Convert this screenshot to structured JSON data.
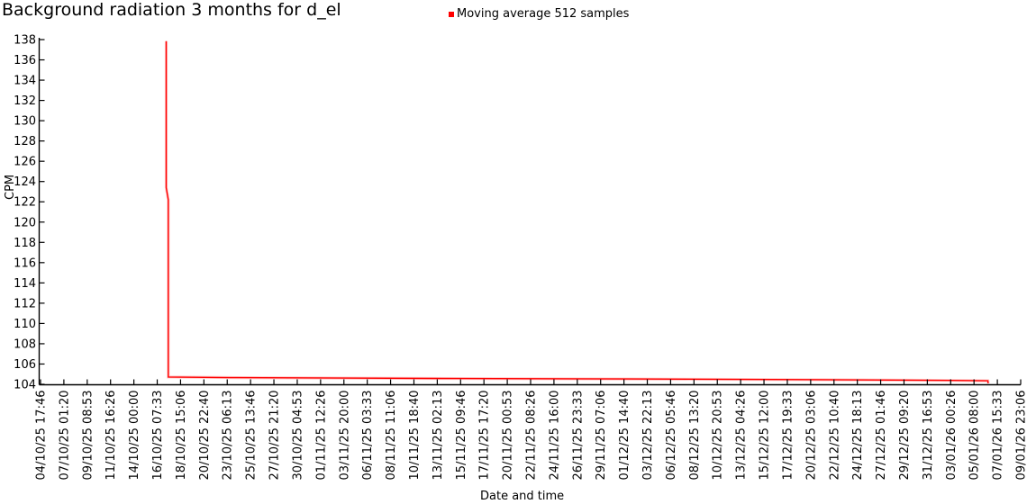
{
  "chart_data": {
    "type": "line",
    "title": "Background radiation 3 months for d_el",
    "xlabel": "Date and time",
    "ylabel": "CPM",
    "ylim": [
      104,
      138
    ],
    "y_tick_step": 2,
    "y_ticks": [
      104,
      106,
      108,
      110,
      112,
      114,
      116,
      118,
      120,
      122,
      124,
      126,
      128,
      130,
      132,
      134,
      136,
      138
    ],
    "x_tick_labels": [
      "04/10/25 17:46",
      "07/10/25 01:20",
      "09/10/25 08:53",
      "11/10/25 16:26",
      "14/10/25 00:00",
      "16/10/25 07:33",
      "18/10/25 15:06",
      "20/10/25 22:40",
      "23/10/25 06:13",
      "25/10/25 13:46",
      "27/10/25 21:20",
      "30/10/25 04:53",
      "01/11/25 12:26",
      "03/11/25 20:00",
      "06/11/25 03:33",
      "08/11/25 11:06",
      "10/11/25 18:40",
      "13/11/25 02:13",
      "15/11/25 09:46",
      "17/11/25 17:20",
      "20/11/25 00:53",
      "22/11/25 08:26",
      "24/11/25 16:00",
      "26/11/25 23:33",
      "29/11/25 07:06",
      "01/12/25 14:40",
      "03/12/25 22:13",
      "06/12/25 05:46",
      "08/12/25 13:20",
      "10/12/25 20:53",
      "13/12/25 04:26",
      "15/12/25 12:00",
      "17/12/25 19:33",
      "20/12/25 03:06",
      "22/12/25 10:40",
      "24/12/25 18:13",
      "27/12/25 01:46",
      "29/12/25 09:20",
      "31/12/25 16:53",
      "03/01/26 00:26",
      "05/01/26 08:00",
      "07/01/26 15:33",
      "09/01/26 23:06"
    ],
    "grid": false,
    "legend_position": "top-center",
    "axis_color": "#000000",
    "series": [
      {
        "name": "Moving average 512 samples",
        "color": "#ff0000",
        "halo_color": "#ff9c9c",
        "points_x_frac_cpm": [
          [
            0.1282,
            137.85
          ],
          [
            0.1282,
            123.4
          ],
          [
            0.1303,
            122.2
          ],
          [
            0.1303,
            104.72
          ],
          [
            0.2,
            104.66
          ],
          [
            0.4,
            104.58
          ],
          [
            0.6,
            104.52
          ],
          [
            0.8,
            104.45
          ],
          [
            0.93,
            104.38
          ],
          [
            0.9665,
            104.35
          ],
          [
            0.9668,
            104.1
          ]
        ]
      }
    ]
  }
}
